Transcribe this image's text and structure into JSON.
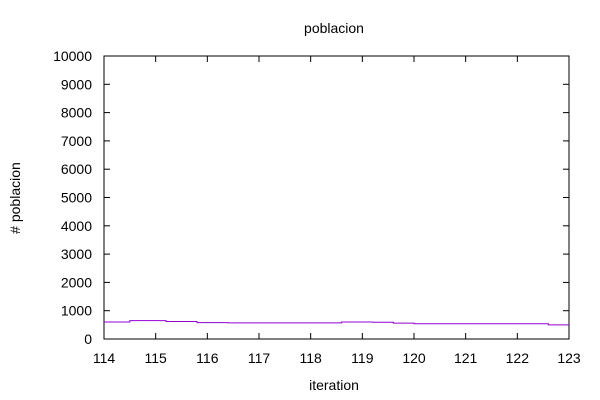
{
  "chart_data": {
    "type": "line",
    "title": "poblacion",
    "xlabel": "iteration",
    "ylabel": "# poblacion",
    "xlim": [
      114,
      123
    ],
    "ylim": [
      0,
      10000
    ],
    "xticks": [
      "114",
      "115",
      "116",
      "117",
      "118",
      "119",
      "120",
      "121",
      "122",
      "123"
    ],
    "yticks": [
      "0",
      "1000",
      "2000",
      "3000",
      "4000",
      "5000",
      "6000",
      "7000",
      "8000",
      "9000",
      "10000"
    ],
    "grid": false,
    "legend": "none",
    "series": [
      {
        "color": "#9400d3",
        "step": true,
        "x": [
          114,
          114.5,
          115.2,
          115.8,
          116.4,
          117,
          117.6,
          118.2,
          118.6,
          119.2,
          119.6,
          120,
          120.6,
          121.2,
          121.8,
          122.4,
          122.6,
          123
        ],
        "y": [
          600,
          650,
          620,
          580,
          570,
          570,
          570,
          570,
          600,
          590,
          560,
          540,
          540,
          540,
          540,
          540,
          500,
          500
        ]
      }
    ]
  }
}
